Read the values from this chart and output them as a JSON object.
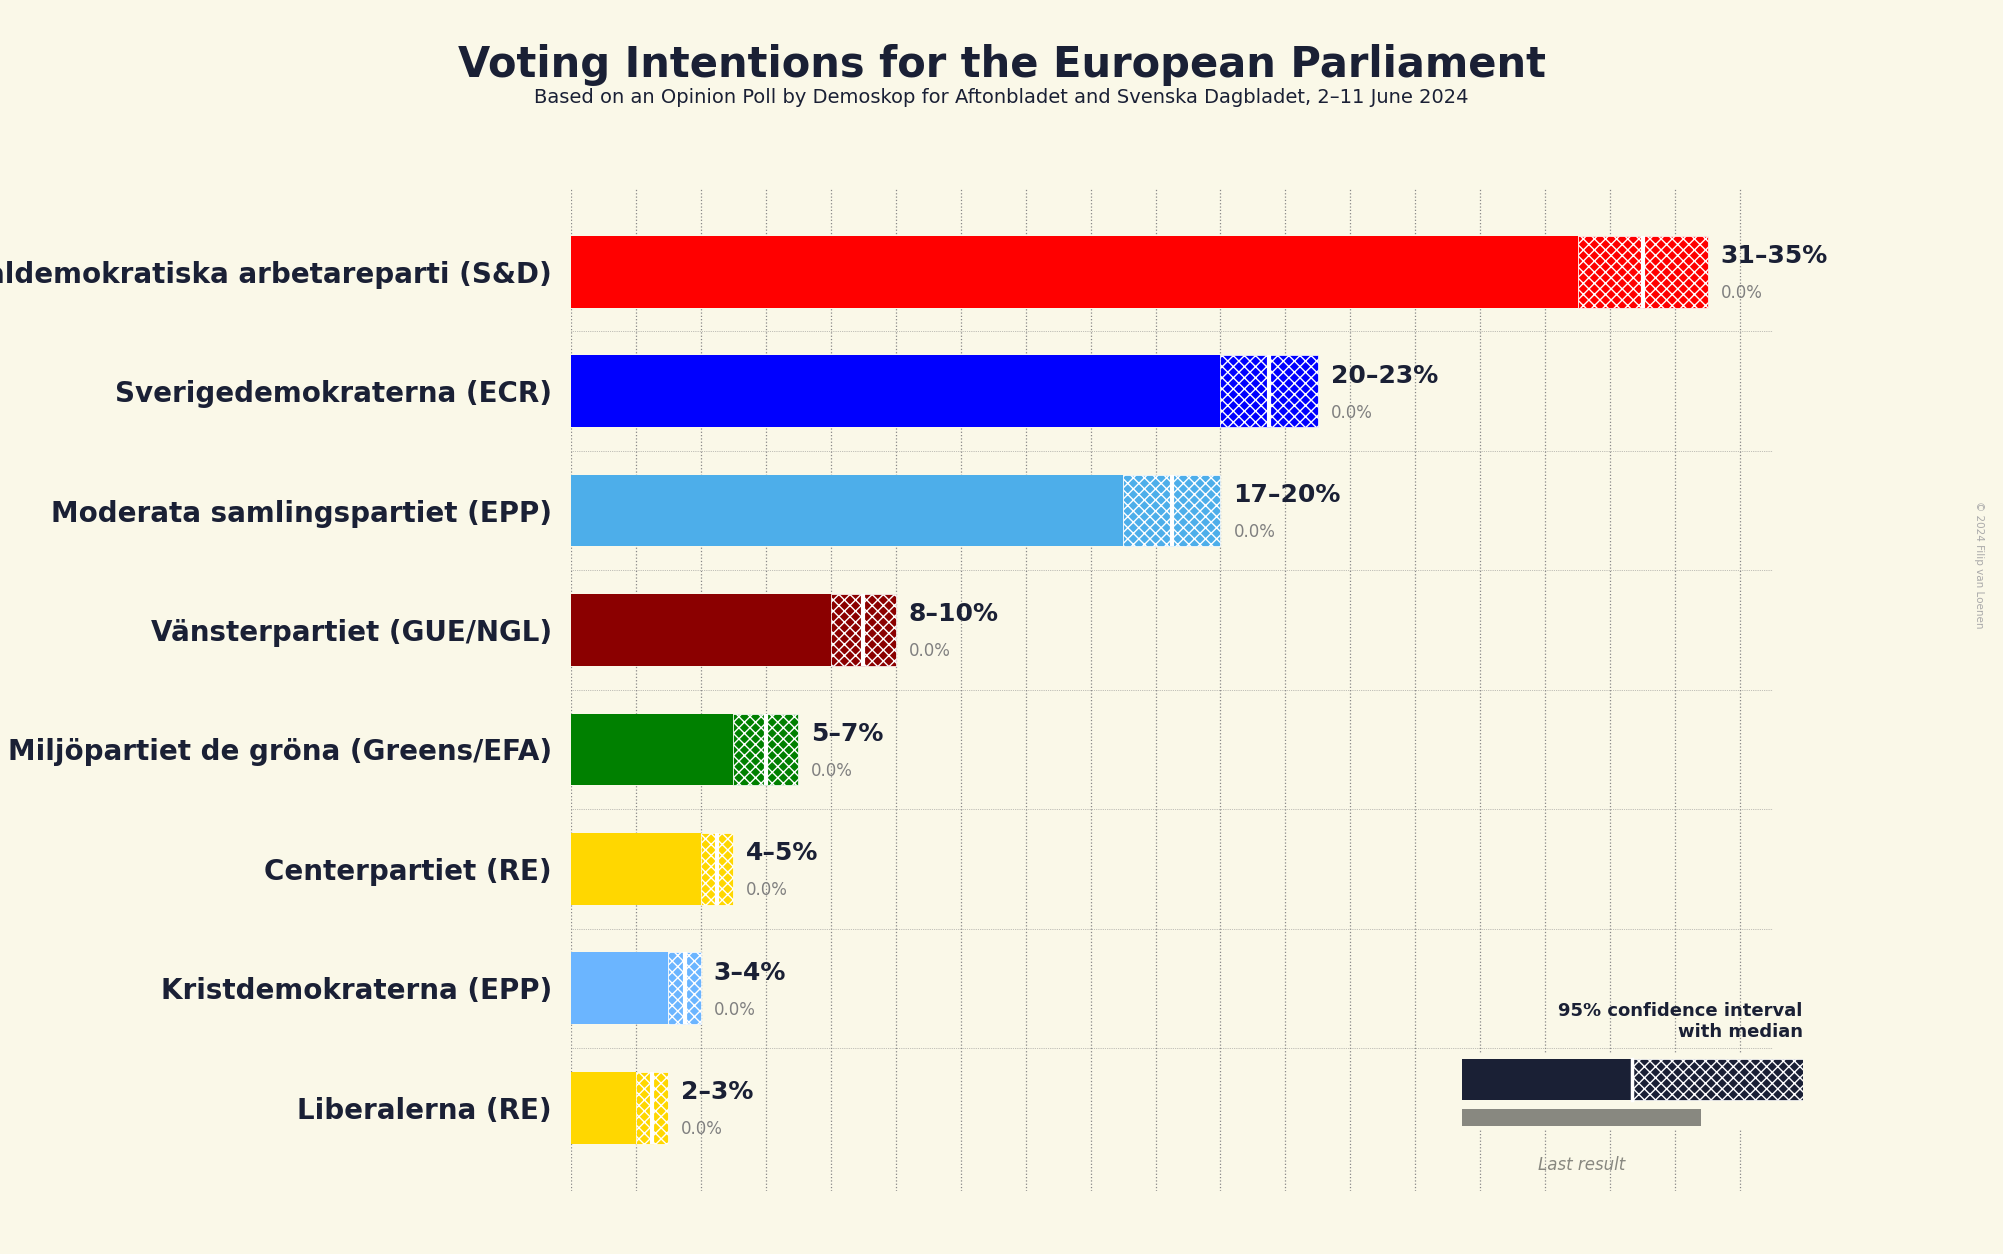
{
  "title": "Voting Intentions for the European Parliament",
  "subtitle": "Based on an Opinion Poll by Demoskop for Aftonbladet and Svenska Dagbladet, 2–11 June 2024",
  "background_color": "#faf8e8",
  "parties": [
    {
      "name": "Sveriges socialdemokratiska arbetareparti (S&D)",
      "low": 31,
      "high": 35,
      "median": 33,
      "color": "#FF0000",
      "label": "31–35%"
    },
    {
      "name": "Sverigedemokraterna (ECR)",
      "low": 20,
      "high": 23,
      "median": 21.5,
      "color": "#0000FF",
      "label": "20–23%"
    },
    {
      "name": "Moderata samlingspartiet (EPP)",
      "low": 17,
      "high": 20,
      "median": 18.5,
      "color": "#4DAEEA",
      "label": "17–20%"
    },
    {
      "name": "Vänsterpartiet (GUE/NGL)",
      "low": 8,
      "high": 10,
      "median": 9,
      "color": "#8B0000",
      "label": "8–10%"
    },
    {
      "name": "Miljöpartiet de gröna (Greens/EFA)",
      "low": 5,
      "high": 7,
      "median": 6,
      "color": "#008000",
      "label": "5–7%"
    },
    {
      "name": "Centerpartiet (RE)",
      "low": 4,
      "high": 5,
      "median": 4.5,
      "color": "#FFD700",
      "label": "4–5%"
    },
    {
      "name": "Kristdemokraterna (EPP)",
      "low": 3,
      "high": 4,
      "median": 3.5,
      "color": "#6BB5FF",
      "label": "3–4%"
    },
    {
      "name": "Liberalerna (RE)",
      "low": 2,
      "high": 3,
      "median": 2.5,
      "color": "#FFD700",
      "label": "2–3%"
    }
  ],
  "xlim": [
    0,
    37
  ],
  "tick_values": [
    0,
    2,
    4,
    6,
    8,
    10,
    12,
    14,
    16,
    18,
    20,
    22,
    24,
    26,
    28,
    30,
    32,
    34,
    36
  ],
  "grid_color": "#888888",
  "title_fontsize": 30,
  "subtitle_fontsize": 14,
  "party_label_fontsize": 20,
  "value_label_fontsize": 18,
  "bar_height": 0.6,
  "copyright": "© 2024 Filip van Loenen",
  "legend_text": "95% confidence interval\nwith median",
  "legend_last": "Last result",
  "legend_dark_color": "#1a2035",
  "legend_gray_color": "#888880"
}
